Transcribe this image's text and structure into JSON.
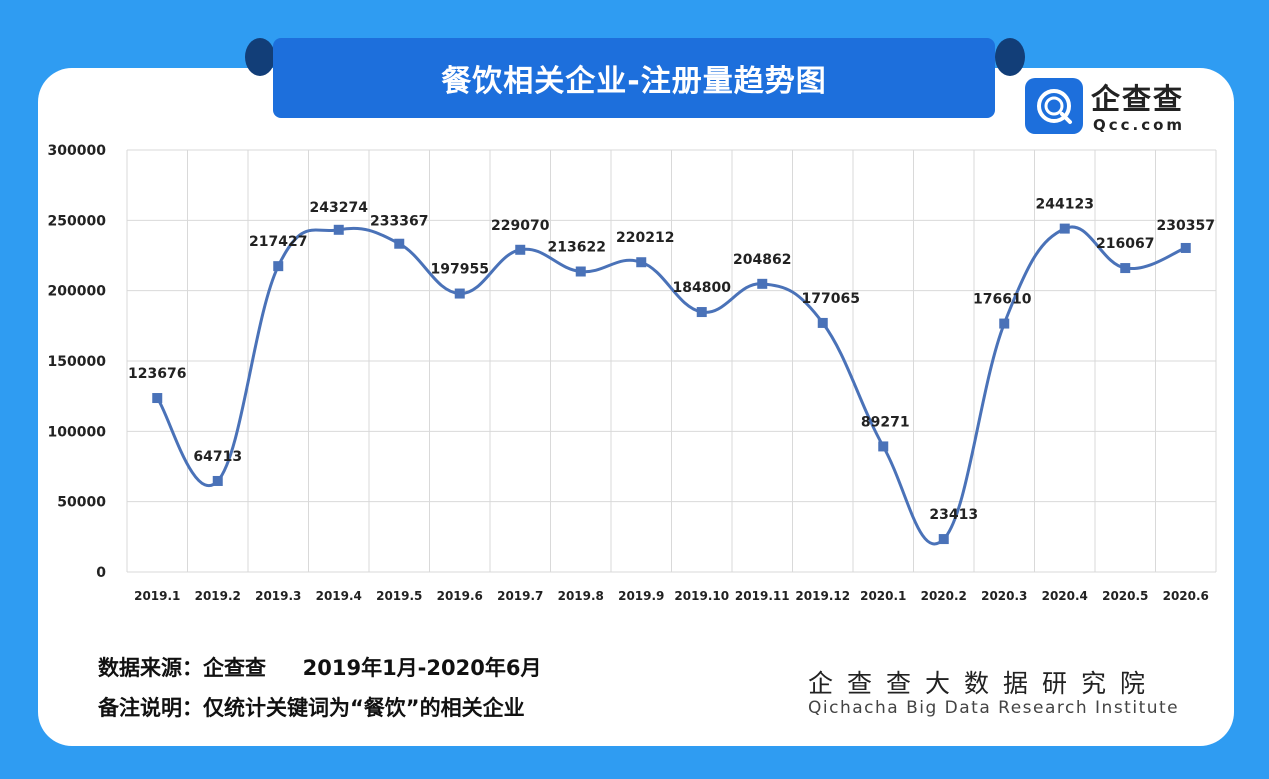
{
  "header": {
    "title": "餐饮相关企业-注册量趋势图"
  },
  "brand": {
    "name": "企查查",
    "domain": "Qcc.com"
  },
  "footer": {
    "source_label": "数据来源：企查查",
    "source_period": "2019年1月-2020年6月",
    "note": "备注说明：仅统计关键词为“餐饮”的相关企业",
    "institute_cn": "企查查大数据研究院",
    "institute_en": "Qichacha Big Data Research Institute"
  },
  "colors": {
    "background": "#2f9cf2",
    "title_bar": "#1d6fdc",
    "series": "#4a72b8",
    "grid": "#d9d9d9"
  },
  "chart_data": {
    "type": "line",
    "title": "餐饮相关企业-注册量趋势图",
    "xlabel": "",
    "ylabel": "",
    "ylim": [
      0,
      300000
    ],
    "yticks": [
      0,
      50000,
      100000,
      150000,
      200000,
      250000,
      300000
    ],
    "grid": true,
    "categories": [
      "2019.1",
      "2019.2",
      "2019.3",
      "2019.4",
      "2019.5",
      "2019.6",
      "2019.7",
      "2019.8",
      "2019.9",
      "2019.10",
      "2019.11",
      "2019.12",
      "2020.1",
      "2020.2",
      "2020.3",
      "2020.4",
      "2020.5",
      "2020.6"
    ],
    "series": [
      {
        "values": [
          123676,
          64713,
          217427,
          243274,
          233367,
          197955,
          229070,
          213622,
          220212,
          184800,
          204862,
          177065,
          89271,
          23413,
          176610,
          244123,
          216067,
          230357
        ]
      }
    ]
  }
}
